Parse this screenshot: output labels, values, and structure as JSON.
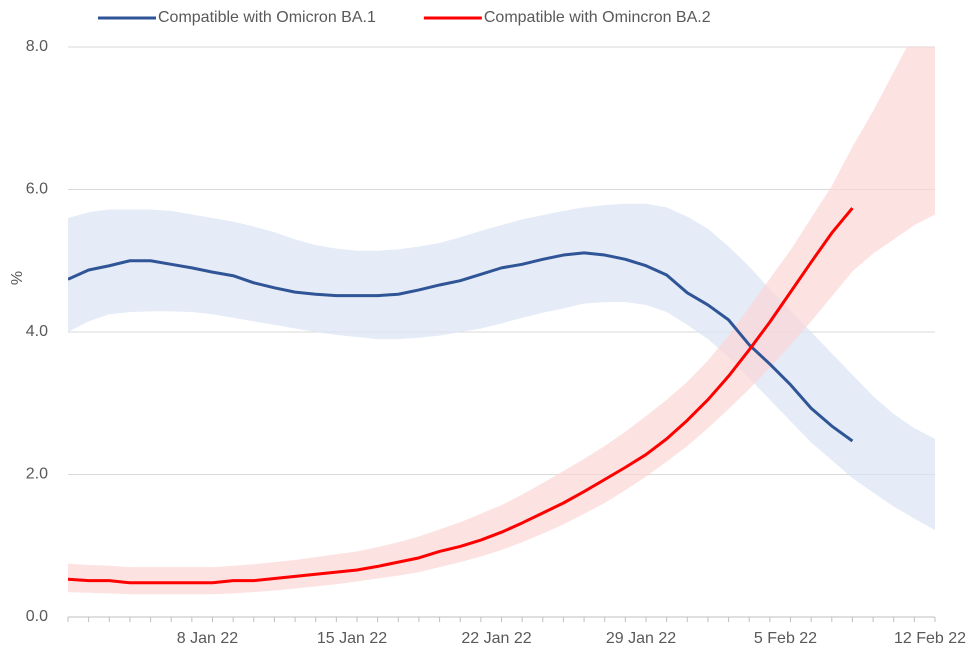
{
  "chart_data": {
    "type": "line",
    "y_label": "%",
    "x": [
      "2022-01-01",
      "2022-01-02",
      "2022-01-03",
      "2022-01-04",
      "2022-01-05",
      "2022-01-06",
      "2022-01-07",
      "2022-01-08",
      "2022-01-09",
      "2022-01-10",
      "2022-01-11",
      "2022-01-12",
      "2022-01-13",
      "2022-01-14",
      "2022-01-15",
      "2022-01-16",
      "2022-01-17",
      "2022-01-18",
      "2022-01-19",
      "2022-01-20",
      "2022-01-21",
      "2022-01-22",
      "2022-01-23",
      "2022-01-24",
      "2022-01-25",
      "2022-01-26",
      "2022-01-27",
      "2022-01-28",
      "2022-01-29",
      "2022-01-30",
      "2022-01-31",
      "2022-02-01",
      "2022-02-02",
      "2022-02-03",
      "2022-02-04",
      "2022-02-05",
      "2022-02-06",
      "2022-02-07",
      "2022-02-08",
      "2022-02-09",
      "2022-02-10",
      "2022-02-11",
      "2022-02-12"
    ],
    "xlim": [
      "2022-01-01",
      "2022-02-12"
    ],
    "xticks": [
      {
        "value": "2022-01-08",
        "label": "8 Jan 22"
      },
      {
        "value": "2022-01-15",
        "label": "15 Jan 22"
      },
      {
        "value": "2022-01-22",
        "label": "22 Jan 22"
      },
      {
        "value": "2022-01-29",
        "label": "29 Jan 22"
      },
      {
        "value": "2022-02-05",
        "label": "5 Feb 22"
      },
      {
        "value": "2022-02-12",
        "label": "12 Feb 22"
      }
    ],
    "ylim": [
      0,
      8
    ],
    "yticks": [
      {
        "value": 0,
        "label": "0.0"
      },
      {
        "value": 2,
        "label": "2.0"
      },
      {
        "value": 4,
        "label": "4.0"
      },
      {
        "value": 6,
        "label": "6.0"
      },
      {
        "value": 8,
        "label": "8.0"
      }
    ],
    "grid": true,
    "series": [
      {
        "name": "Compatible with Omicron BA.1",
        "color": "#2f5597",
        "band_color": "#dae3f3",
        "values": [
          4.74,
          4.87,
          4.93,
          5.0,
          5.0,
          4.95,
          4.9,
          4.84,
          4.79,
          4.69,
          4.62,
          4.56,
          4.53,
          4.51,
          4.51,
          4.51,
          4.53,
          4.59,
          4.66,
          4.72,
          4.81,
          4.9,
          4.95,
          5.02,
          5.08,
          5.11,
          5.08,
          5.02,
          4.93,
          4.8,
          4.55,
          4.38,
          4.17,
          3.82,
          3.55,
          3.26,
          2.93,
          2.68,
          2.47,
          null,
          null,
          null,
          null
        ],
        "upper": [
          5.6,
          5.68,
          5.72,
          5.72,
          5.72,
          5.7,
          5.65,
          5.6,
          5.55,
          5.48,
          5.4,
          5.3,
          5.22,
          5.17,
          5.14,
          5.14,
          5.16,
          5.2,
          5.25,
          5.33,
          5.42,
          5.5,
          5.58,
          5.64,
          5.7,
          5.75,
          5.78,
          5.8,
          5.8,
          5.75,
          5.62,
          5.45,
          5.2,
          4.92,
          4.6,
          4.3,
          4.0,
          3.7,
          3.4,
          3.1,
          2.85,
          2.65,
          2.5
        ],
        "lower": [
          4.0,
          4.15,
          4.25,
          4.28,
          4.29,
          4.29,
          4.28,
          4.25,
          4.2,
          4.15,
          4.1,
          4.05,
          4.0,
          3.96,
          3.93,
          3.9,
          3.9,
          3.92,
          3.95,
          4.0,
          4.05,
          4.12,
          4.2,
          4.27,
          4.33,
          4.4,
          4.42,
          4.42,
          4.38,
          4.28,
          4.1,
          3.9,
          3.65,
          3.35,
          3.05,
          2.75,
          2.45,
          2.2,
          1.95,
          1.75,
          1.55,
          1.38,
          1.22
        ]
      },
      {
        "name": "Compatible with Omincron BA.2",
        "color": "#ff0000",
        "band_color": "#fcd5d5",
        "values": [
          0.53,
          0.51,
          0.51,
          0.48,
          0.48,
          0.48,
          0.48,
          0.48,
          0.51,
          0.51,
          0.54,
          0.57,
          0.6,
          0.63,
          0.66,
          0.71,
          0.77,
          0.83,
          0.92,
          0.99,
          1.08,
          1.19,
          1.32,
          1.46,
          1.6,
          1.76,
          1.93,
          2.1,
          2.28,
          2.5,
          2.76,
          3.05,
          3.38,
          3.75,
          4.14,
          4.56,
          4.98,
          5.39,
          5.74,
          null,
          null,
          null,
          null
        ],
        "upper": [
          0.75,
          0.73,
          0.72,
          0.7,
          0.7,
          0.7,
          0.7,
          0.7,
          0.72,
          0.74,
          0.77,
          0.8,
          0.84,
          0.88,
          0.92,
          0.98,
          1.05,
          1.13,
          1.23,
          1.33,
          1.45,
          1.57,
          1.72,
          1.88,
          2.05,
          2.22,
          2.4,
          2.6,
          2.82,
          3.05,
          3.3,
          3.6,
          3.95,
          4.35,
          4.75,
          5.15,
          5.6,
          6.05,
          6.6,
          7.1,
          7.65,
          8.2,
          8.7
        ],
        "lower": [
          0.35,
          0.34,
          0.33,
          0.32,
          0.32,
          0.32,
          0.32,
          0.32,
          0.33,
          0.35,
          0.37,
          0.4,
          0.43,
          0.46,
          0.5,
          0.54,
          0.58,
          0.63,
          0.7,
          0.77,
          0.85,
          0.94,
          1.05,
          1.17,
          1.3,
          1.45,
          1.6,
          1.78,
          1.97,
          2.18,
          2.4,
          2.65,
          2.92,
          3.2,
          3.5,
          3.82,
          4.15,
          4.5,
          4.85,
          5.1,
          5.3,
          5.5,
          5.65
        ]
      }
    ]
  }
}
